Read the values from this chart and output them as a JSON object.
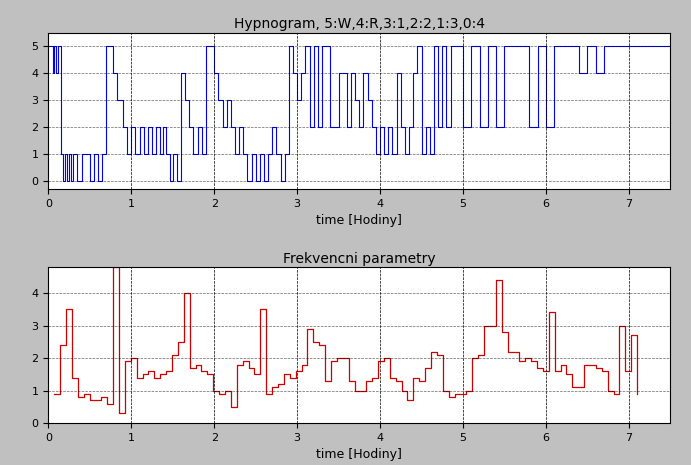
{
  "title1": "Hypnogram, 5:W,4:R,3:1,2:2,1:3,0:4",
  "title2": "Frekvencni parametry",
  "xlabel": "time [Hodiny]",
  "bg_color": "#c0c0c0",
  "ax_bg_color": "#ffffff",
  "grid_color": "#000000",
  "hypno_color": "#0000ff",
  "lf_hf_color": "#cc0000",
  "hypno_x": [
    0.0,
    0.05,
    0.07,
    0.09,
    0.12,
    0.15,
    0.18,
    0.2,
    0.22,
    0.25,
    0.27,
    0.3,
    0.35,
    0.4,
    0.5,
    0.55,
    0.6,
    0.65,
    0.7,
    0.78,
    0.83,
    0.9,
    0.95,
    1.0,
    1.05,
    1.1,
    1.15,
    1.2,
    1.25,
    1.3,
    1.35,
    1.38,
    1.42,
    1.47,
    1.5,
    1.55,
    1.6,
    1.65,
    1.7,
    1.75,
    1.8,
    1.85,
    1.9,
    2.0,
    2.05,
    2.1,
    2.15,
    2.2,
    2.25,
    2.3,
    2.35,
    2.4,
    2.45,
    2.5,
    2.55,
    2.6,
    2.65,
    2.7,
    2.75,
    2.8,
    2.85,
    2.9,
    2.95,
    3.0,
    3.05,
    3.1,
    3.15,
    3.2,
    3.25,
    3.3,
    3.4,
    3.5,
    3.6,
    3.65,
    3.7,
    3.75,
    3.8,
    3.85,
    3.9,
    3.95,
    4.0,
    4.05,
    4.1,
    4.15,
    4.2,
    4.25,
    4.3,
    4.35,
    4.4,
    4.45,
    4.5,
    4.55,
    4.6,
    4.65,
    4.7,
    4.75,
    4.8,
    4.85,
    4.9,
    4.95,
    5.0,
    5.1,
    5.2,
    5.3,
    5.4,
    5.5,
    5.6,
    5.7,
    5.8,
    5.9,
    6.0,
    6.1,
    6.2,
    6.3,
    6.4,
    6.5,
    6.6,
    6.7,
    6.8,
    6.9,
    7.0,
    7.2,
    7.5
  ],
  "hypno_y": [
    5,
    4,
    5,
    4,
    5,
    1,
    0,
    1,
    0,
    1,
    0,
    1,
    0,
    1,
    0,
    1,
    0,
    1,
    5,
    4,
    3,
    2,
    1,
    2,
    1,
    2,
    1,
    2,
    1,
    2,
    1,
    2,
    1,
    0,
    1,
    0,
    4,
    3,
    2,
    1,
    2,
    1,
    5,
    4,
    3,
    2,
    3,
    2,
    1,
    2,
    1,
    0,
    1,
    0,
    1,
    0,
    1,
    2,
    1,
    0,
    1,
    5,
    4,
    3,
    4,
    5,
    2,
    5,
    2,
    5,
    2,
    4,
    2,
    4,
    3,
    2,
    4,
    3,
    2,
    1,
    2,
    1,
    2,
    1,
    4,
    2,
    1,
    2,
    4,
    5,
    1,
    2,
    1,
    5,
    2,
    5,
    2,
    5,
    5,
    5,
    2,
    5,
    2,
    5,
    2,
    5,
    5,
    5,
    2,
    5,
    2,
    5,
    5,
    5,
    4,
    5,
    4,
    5,
    5,
    5,
    5,
    5,
    5
  ],
  "lf_hf_x": [
    0.071,
    0.142,
    0.213,
    0.284,
    0.355,
    0.426,
    0.497,
    0.568,
    0.639,
    0.71,
    0.781,
    0.852,
    0.923,
    0.994,
    1.065,
    1.136,
    1.207,
    1.278,
    1.349,
    1.42,
    1.491,
    1.562,
    1.633,
    1.704,
    1.775,
    1.846,
    1.917,
    1.988,
    2.059,
    2.13,
    2.201,
    2.272,
    2.343,
    2.414,
    2.485,
    2.556,
    2.627,
    2.698,
    2.769,
    2.84,
    2.911,
    2.982,
    3.053,
    3.124,
    3.195,
    3.266,
    3.337,
    3.408,
    3.479,
    3.55,
    3.621,
    3.692,
    3.763,
    3.834,
    3.905,
    3.976,
    4.047,
    4.118,
    4.189,
    4.26,
    4.331,
    4.402,
    4.473,
    4.544,
    4.615,
    4.686,
    4.757,
    4.828,
    4.899,
    4.97,
    5.041,
    5.112,
    5.183,
    5.254,
    5.325,
    5.396,
    5.467,
    5.538,
    5.609,
    5.68,
    5.751,
    5.822,
    5.893,
    5.964,
    6.035,
    6.106,
    6.177,
    6.248,
    6.319,
    6.39,
    6.461,
    6.532,
    6.603,
    6.674,
    6.745,
    6.816,
    6.887,
    6.958,
    7.029,
    7.1
  ],
  "lf_hf_y": [
    0.9,
    2.4,
    3.5,
    1.4,
    0.8,
    0.9,
    0.7,
    0.7,
    0.8,
    0.6,
    4.8,
    0.3,
    1.9,
    2.0,
    1.4,
    1.5,
    1.6,
    1.4,
    1.5,
    1.6,
    2.1,
    2.5,
    4.0,
    1.7,
    1.8,
    1.6,
    1.5,
    1.0,
    0.9,
    1.0,
    0.5,
    1.8,
    1.9,
    1.7,
    1.5,
    3.5,
    0.9,
    1.1,
    1.2,
    1.5,
    1.4,
    1.6,
    1.8,
    2.9,
    2.5,
    2.4,
    1.3,
    1.9,
    2.0,
    2.0,
    1.3,
    1.0,
    1.0,
    1.3,
    1.4,
    1.9,
    2.0,
    1.4,
    1.3,
    1.0,
    0.7,
    1.4,
    1.3,
    1.7,
    2.2,
    2.1,
    1.0,
    0.8,
    0.9,
    0.9,
    1.0,
    2.0,
    2.1,
    3.0,
    3.0,
    4.4,
    2.8,
    2.2,
    2.2,
    1.9,
    2.0,
    1.9,
    1.7,
    1.6,
    3.4,
    1.6,
    1.8,
    1.5,
    1.1,
    1.1,
    1.8,
    1.8,
    1.7,
    1.6,
    1.0,
    0.9,
    3.0,
    1.6,
    2.7,
    0.9
  ]
}
